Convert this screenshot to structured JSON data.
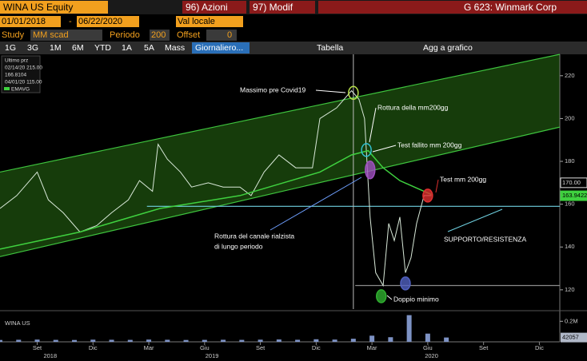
{
  "header": {
    "ticker": "WINA US Equity",
    "menu1": "96) Azioni",
    "menu2": "97) Modif",
    "name": "G 623: Winmark Corp"
  },
  "controls": {
    "start": "01/01/2018",
    "dash": "-",
    "end": "06/22/2020",
    "currency": "Val locale",
    "study": "Study",
    "study_type": "MM scad",
    "period_label": "Periodo",
    "period": "200",
    "offset_label": "Offset",
    "offset": "0"
  },
  "toolbar": [
    "1G",
    "3G",
    "1M",
    "6M",
    "YTD",
    "1A",
    "5A",
    "Mass",
    "Giornaliero...",
    "Tabella",
    "Agg a grafico"
  ],
  "legend_box": [
    "Ultimo prz",
    "02/14/20 215.00",
    "166.8104",
    "04/01/20 115.00",
    "EMAVG"
  ],
  "chart_data": {
    "type": "line",
    "xlim": [
      -2,
      28.1
    ],
    "xticks": [
      {
        "value": 0,
        "label": "Set"
      },
      {
        "value": 3,
        "label": "Dic"
      },
      {
        "value": 6,
        "label": "Mar"
      },
      {
        "value": 9,
        "label": "Giu"
      },
      {
        "value": 12,
        "label": "Set"
      },
      {
        "value": 15,
        "label": "Dic"
      },
      {
        "value": 18,
        "label": "Mar"
      },
      {
        "value": 21,
        "label": "Giu"
      },
      {
        "value": 24,
        "label": "Set"
      },
      {
        "value": 27,
        "label": "Dic"
      }
    ],
    "year_ticks": [
      {
        "value": 0.7,
        "label": "2018"
      },
      {
        "value": 9.4,
        "label": "2019"
      },
      {
        "value": 21.2,
        "label": "2020"
      }
    ],
    "ylim": [
      111,
      230
    ],
    "yticks": [
      120,
      140,
      160,
      180,
      200,
      220
    ],
    "series": [
      {
        "name": "Ultimo prz",
        "color": "#d8e8d8",
        "x": [
          -2.0,
          -1.1,
          0.0,
          0.6,
          1.4,
          2.3,
          3.2,
          4.0,
          4.9,
          5.5,
          6.2,
          6.5,
          7.0,
          7.7,
          8.3,
          9.2,
          10.0,
          10.9,
          11.5,
          12.2,
          13.0,
          13.9,
          14.8,
          15.2,
          16.1,
          16.9,
          17.3,
          17.6,
          17.9,
          18.2,
          18.6,
          18.9,
          19.2,
          19.5,
          19.8,
          20.1,
          20.4,
          20.8,
          21.2
        ],
        "values": [
          158,
          164,
          175,
          162,
          156,
          147,
          150,
          156,
          162,
          171,
          166,
          188,
          181,
          175,
          168,
          170,
          168,
          168,
          164,
          175,
          183,
          177,
          177,
          200,
          205,
          213,
          209,
          200,
          154,
          128,
          122,
          151,
          143,
          154,
          128,
          135,
          151,
          164,
          164
        ]
      },
      {
        "name": "EMAVG",
        "color": "#3fd13f",
        "x": [
          -2.0,
          2.3,
          6.6,
          10.9,
          15.2,
          16.9,
          17.8,
          18.6,
          19.5,
          20.8,
          21.2
        ],
        "values": [
          139,
          147,
          158,
          164,
          175,
          183,
          185,
          177,
          171,
          166,
          164.5
        ]
      }
    ],
    "trendlines": [
      {
        "color": "#3ec43e",
        "x": [
          -2,
          28.1
        ],
        "values": [
          175,
          230
        ]
      },
      {
        "color": "#3ec43e",
        "x": [
          -2,
          28.1
        ],
        "values": [
          135.5,
          196
        ]
      },
      {
        "color": "#6fd0e0",
        "x": [
          5.9,
          28.1
        ],
        "values": [
          159,
          159
        ]
      },
      {
        "color": "#8a8a8a",
        "x": [
          17.1,
          28.1
        ],
        "values": [
          122,
          122
        ]
      }
    ],
    "vline_x": 17.0,
    "markers": [
      {
        "x": 17.0,
        "value": 212,
        "color": "#b8e04a"
      },
      {
        "x": 17.7,
        "value": 185.3,
        "color": "#30c0d0"
      },
      {
        "x": 17.9,
        "value": 176,
        "color": "#a050c0"
      },
      {
        "x": 21.0,
        "value": 164,
        "color": "#e03030"
      },
      {
        "x": 18.5,
        "value": 117,
        "color": "#30b030"
      },
      {
        "x": 19.8,
        "value": 123,
        "color": "#5060c0"
      }
    ],
    "annotations": [
      "Massimo pre Covid19",
      "Rottura della mm200gg",
      "Test fallito mm 200gg",
      "Test mm 200gg",
      "Rottura del canale rialzista",
      "di lungo periodo",
      "SUPPORTO/RESISTENZA",
      "Doppio minimo"
    ],
    "price_tags": [
      {
        "value": 170,
        "label": "170.00",
        "color": "#ddd"
      },
      {
        "value": 163.9422,
        "label": "163.9422",
        "color": "#3fd13f"
      }
    ],
    "volume": {
      "name": "WINA US",
      "color": "#7d92c4",
      "ylim": [
        0,
        280000
      ],
      "yticks": [
        {
          "value": 200000,
          "label": "0.2M"
        }
      ],
      "x": [
        -2,
        -1,
        0,
        1,
        2,
        3,
        4,
        5,
        6,
        7,
        8,
        9,
        10,
        11,
        12,
        13,
        14,
        15,
        16,
        17,
        18,
        19,
        20,
        21,
        22
      ],
      "values": [
        18000,
        20000,
        22000,
        19000,
        18000,
        21000,
        20000,
        19000,
        22000,
        20000,
        18000,
        19000,
        20000,
        19000,
        21000,
        23000,
        20000,
        25000,
        22000,
        30000,
        60000,
        45000,
        260000,
        80000,
        42057
      ],
      "value_labels": {
        "24": "42057"
      }
    }
  }
}
